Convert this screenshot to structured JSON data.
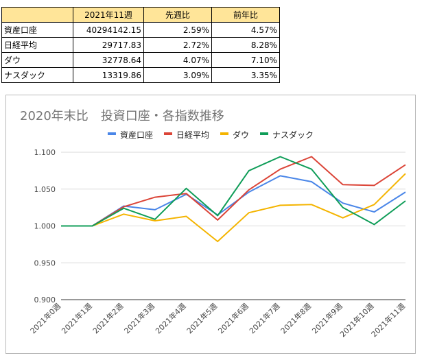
{
  "table": {
    "headers": [
      "",
      "2021年11週",
      "先週比",
      "前年比"
    ],
    "rows": [
      {
        "name": "資産口座",
        "value": "40294142.15",
        "wow": "2.59%",
        "yoy": "4.57%"
      },
      {
        "name": "日経平均",
        "value": "29717.83",
        "wow": "2.72%",
        "yoy": "8.28%"
      },
      {
        "name": "ダウ",
        "value": "32778.64",
        "wow": "4.07%",
        "yoy": "7.10%"
      },
      {
        "name": "ナスダック",
        "value": "13319.86",
        "wow": "3.09%",
        "yoy": "3.35%"
      }
    ]
  },
  "chart_data": {
    "type": "line",
    "title": "2020年末比　投資口座・各指数推移",
    "legend_position": "top",
    "grid": true,
    "ylim": [
      0.9,
      1.1
    ],
    "yticks": [
      "1.100",
      "1.050",
      "1.000",
      "0.950",
      "0.900"
    ],
    "ytick_values": [
      1.1,
      1.05,
      1.0,
      0.95,
      0.9
    ],
    "categories": [
      "2021年0週",
      "2021年1週",
      "2021年2週",
      "2021年3週",
      "2021年4週",
      "2021年5週",
      "2021年6週",
      "2021年7週",
      "2021年8週",
      "2021年9週",
      "2021年10週",
      "2021年11週"
    ],
    "series": [
      {
        "name": "資産口座",
        "color": "#4a86e8",
        "values": [
          1.0,
          1.0,
          1.027,
          1.022,
          1.043,
          1.015,
          1.046,
          1.068,
          1.06,
          1.031,
          1.019,
          1.046
        ]
      },
      {
        "name": "日経平均",
        "color": "#db4437",
        "values": [
          1.0,
          1.0,
          1.026,
          1.039,
          1.044,
          1.008,
          1.049,
          1.077,
          1.094,
          1.056,
          1.055,
          1.083
        ]
      },
      {
        "name": "ダウ",
        "color": "#f4b400",
        "values": [
          1.0,
          1.0,
          1.016,
          1.007,
          1.013,
          0.979,
          1.018,
          1.028,
          1.029,
          1.011,
          1.029,
          1.071
        ]
      },
      {
        "name": "ナスダック",
        "color": "#0f9d58",
        "values": [
          1.0,
          1.0,
          1.024,
          1.009,
          1.051,
          1.014,
          1.075,
          1.094,
          1.077,
          1.025,
          1.002,
          1.034
        ]
      }
    ]
  }
}
